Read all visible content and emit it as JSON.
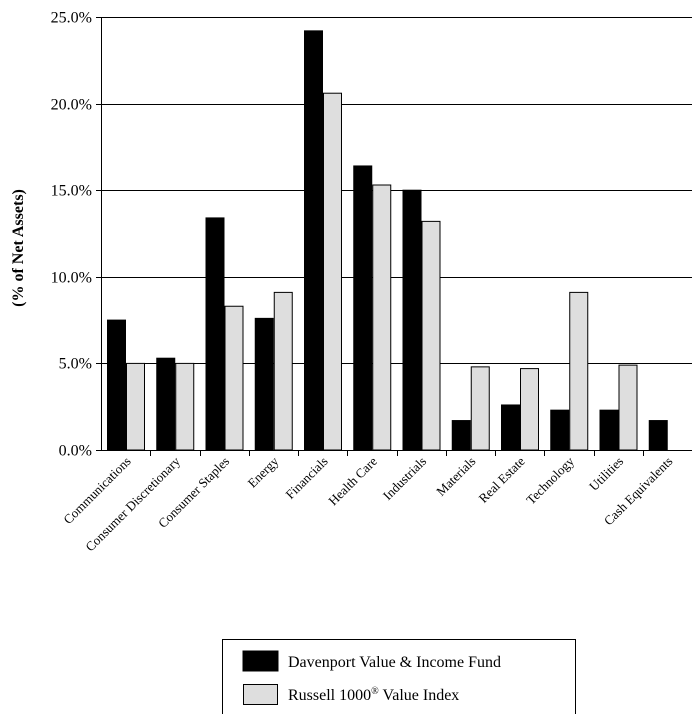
{
  "chart_data": {
    "type": "bar",
    "ylabel": "(% of Net Assets)",
    "ylim": [
      0,
      25
    ],
    "yticks": [
      0,
      5,
      10,
      15,
      20,
      25
    ],
    "ytick_labels": [
      "0.0%",
      "5.0%",
      "10.0%",
      "15.0%",
      "20.0%",
      "25.0%"
    ],
    "grid": "horizontal",
    "legend_position": "bottom",
    "categories": [
      "Communications",
      "Consumer Discretionary",
      "Consumer Staples",
      "Energy",
      "Financials",
      "Health Care",
      "Industrials",
      "Materials",
      "Real Estate",
      "Technology",
      "Utilities",
      "Cash Equivalents"
    ],
    "series": [
      {
        "name": "Davenport Value & Income Fund",
        "color": "#000000",
        "values": [
          7.5,
          5.3,
          13.4,
          7.6,
          24.2,
          16.4,
          15.0,
          1.7,
          2.6,
          2.3,
          2.3,
          1.7
        ]
      },
      {
        "name": "Russell 1000",
        "name_sup": "®",
        "name_suffix": " Value Index",
        "color": "#dedede",
        "values": [
          5.0,
          5.0,
          8.3,
          9.1,
          20.6,
          15.3,
          13.2,
          4.8,
          4.7,
          9.1,
          4.9,
          0
        ]
      }
    ]
  }
}
